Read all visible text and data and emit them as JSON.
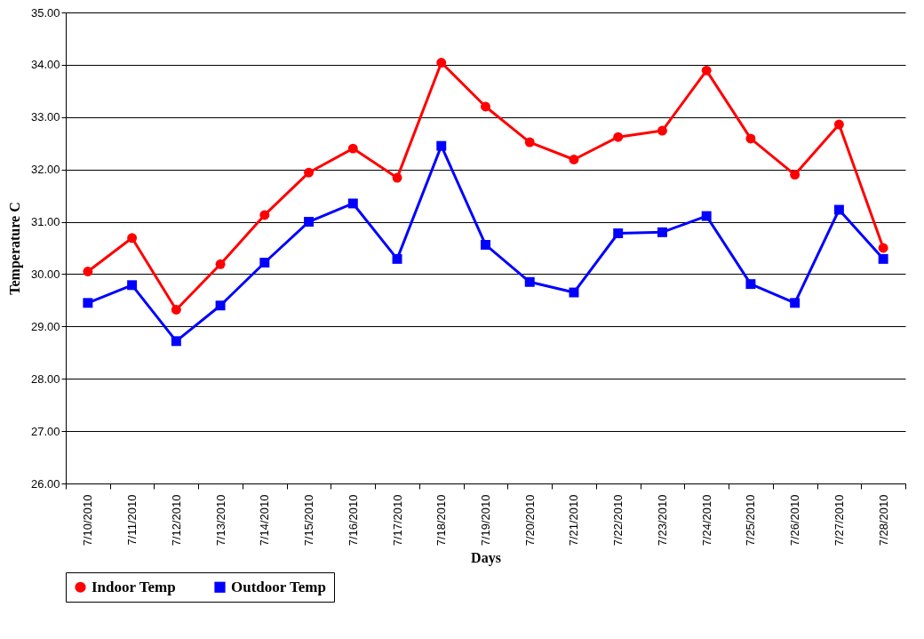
{
  "chart_data": {
    "type": "line",
    "xlabel": "Days",
    "ylabel": "Temperature C",
    "categories": [
      "7/10/2010",
      "7/11/2010",
      "7/12/2010",
      "7/13/2010",
      "7/14/2010",
      "7/15/2010",
      "7/16/2010",
      "7/17/2010",
      "7/18/2010",
      "7/19/2010",
      "7/20/2010",
      "7/21/2010",
      "7/22/2010",
      "7/23/2010",
      "7/24/2010",
      "7/25/2010",
      "7/26/2010",
      "7/27/2010",
      "7/28/2010"
    ],
    "series": [
      {
        "name": "Indoor Temp",
        "color": "#ff0000",
        "marker": "circle",
        "values": [
          30.05,
          30.69,
          29.32,
          30.19,
          31.13,
          31.94,
          32.4,
          31.84,
          34.04,
          33.2,
          32.52,
          32.19,
          32.62,
          32.74,
          33.89,
          32.59,
          31.9,
          32.86,
          30.5
        ]
      },
      {
        "name": "Outdoor Temp",
        "color": "#0000ff",
        "marker": "square",
        "values": [
          29.45,
          29.79,
          28.72,
          29.4,
          30.22,
          31.0,
          31.35,
          30.29,
          32.45,
          30.56,
          29.85,
          29.65,
          30.78,
          30.8,
          31.11,
          29.81,
          29.45,
          31.23,
          30.29
        ]
      }
    ],
    "ylim": [
      26,
      35
    ],
    "yticks": [
      {
        "value": 26,
        "label": "26.00"
      },
      {
        "value": 27,
        "label": "27.00"
      },
      {
        "value": 28,
        "label": "28.00"
      },
      {
        "value": 29,
        "label": "29.00"
      },
      {
        "value": 30,
        "label": "30.00"
      },
      {
        "value": 31,
        "label": "31.00"
      },
      {
        "value": 32,
        "label": "32.00"
      },
      {
        "value": 33,
        "label": "33.00"
      },
      {
        "value": 34,
        "label": "34.00"
      },
      {
        "value": 35,
        "label": "35.00"
      }
    ],
    "grid": "y",
    "legend": "bottom"
  }
}
